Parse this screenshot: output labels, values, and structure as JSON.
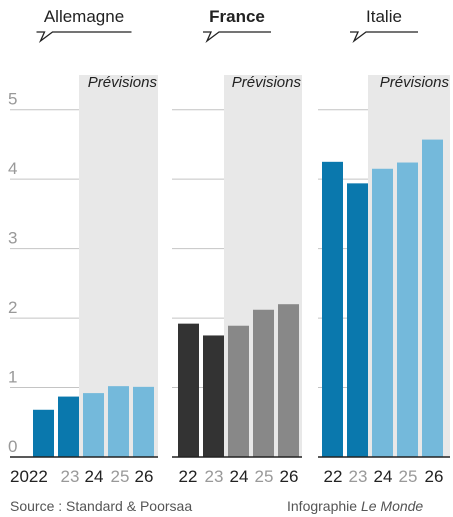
{
  "chart_data": {
    "type": "bar",
    "ylim": [
      0,
      5.5
    ],
    "yticks": [
      0,
      1,
      2,
      3,
      4,
      5
    ],
    "forecast_label": "Prévisions",
    "forecast_from_index": 2,
    "panels": [
      {
        "title": "Allemagne",
        "bold": false,
        "tick_labels": [
          "2022",
          "23",
          "24",
          "25",
          "26"
        ],
        "values": [
          0.68,
          0.87,
          0.92,
          1.02,
          1.01
        ],
        "colors": [
          "#0a78ad",
          "#0a78ad",
          "#74b9db",
          "#74b9db",
          "#74b9db"
        ]
      },
      {
        "title": "France",
        "bold": true,
        "tick_labels": [
          "22",
          "23",
          "24",
          "25",
          "26"
        ],
        "values": [
          1.92,
          1.75,
          1.89,
          2.12,
          2.2
        ],
        "colors": [
          "#333333",
          "#333333",
          "#888888",
          "#888888",
          "#888888"
        ]
      },
      {
        "title": "Italie",
        "bold": false,
        "tick_labels": [
          "22",
          "23",
          "24",
          "25",
          "26"
        ],
        "values": [
          4.25,
          3.94,
          4.15,
          4.24,
          4.57
        ],
        "colors": [
          "#0a78ad",
          "#0a78ad",
          "#74b9db",
          "#74b9db",
          "#74b9db"
        ]
      }
    ],
    "source": "Source : Standard & Poorsaa",
    "credit_prefix": "Infographie ",
    "credit_name": "Le Monde"
  }
}
